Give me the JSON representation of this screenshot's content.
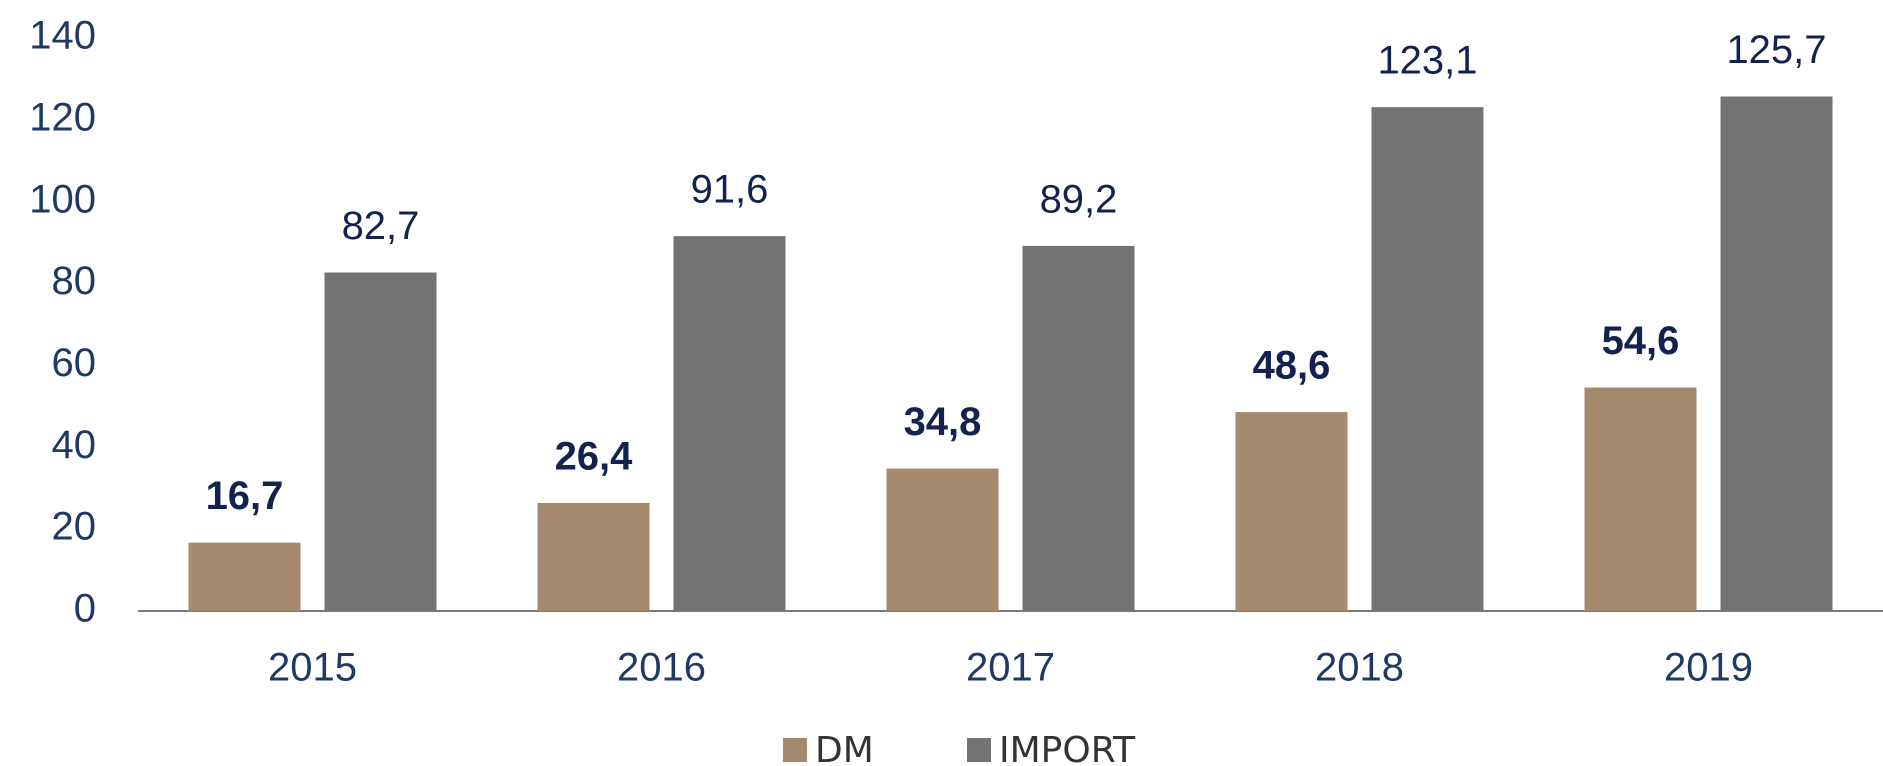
{
  "chart_data": {
    "type": "bar",
    "categories": [
      "2015",
      "2016",
      "2017",
      "2018",
      "2019"
    ],
    "series": [
      {
        "name": "DM",
        "color": "#a58a6d",
        "values": [
          16.7,
          26.4,
          34.8,
          48.6,
          54.6
        ],
        "value_labels": [
          "16,7",
          "26,4",
          "34,8",
          "48,6",
          "54,6"
        ]
      },
      {
        "name": "IMPORT",
        "color": "#737373",
        "values": [
          82.7,
          91.6,
          89.2,
          123.1,
          125.7
        ],
        "value_labels": [
          "82,7",
          "91,6",
          "89,2",
          "123,1",
          "125,7"
        ]
      }
    ],
    "ylim": [
      0,
      140
    ],
    "yticks": [
      0,
      20,
      40,
      60,
      80,
      100,
      120,
      140
    ],
    "grid": false,
    "legend": "bottom"
  }
}
